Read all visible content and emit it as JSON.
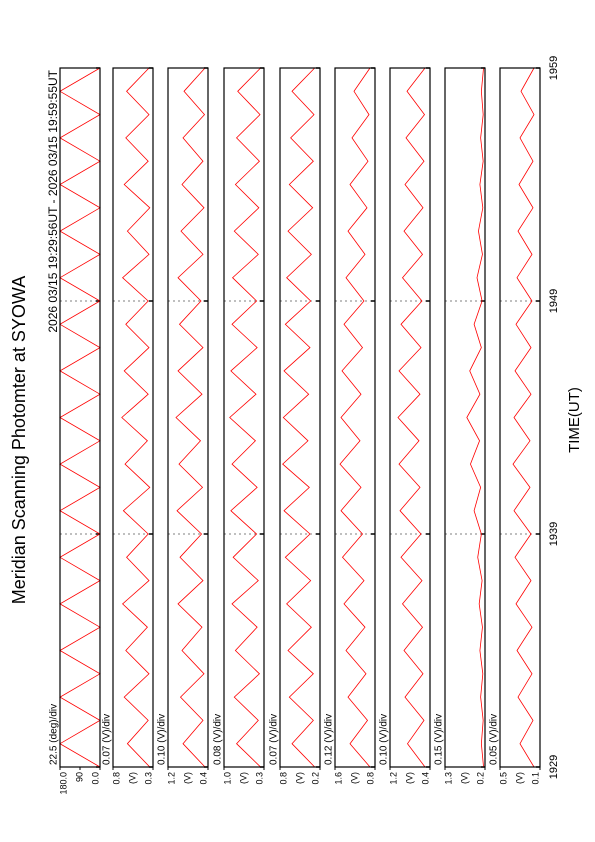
{
  "chart_data": {
    "type": "line",
    "title": "Meridian Scanning Photomter at SYOWA",
    "subtitle": "2026 03/15 19:29:56UT - 2026 03/15 19:59:55UT",
    "xlabel": "TIME(UT)",
    "color": "#ff0000",
    "xlim": [
      0,
      30
    ],
    "xticks": [
      {
        "value": 0,
        "label": "1929"
      },
      {
        "value": 10,
        "label": "1939"
      },
      {
        "value": 20,
        "label": "1949"
      },
      {
        "value": 30,
        "label": "1959"
      }
    ],
    "x": [
      0,
      1,
      2,
      3,
      4,
      5,
      6,
      7,
      8,
      9,
      10,
      11,
      12,
      13,
      14,
      15,
      16,
      17,
      18,
      19,
      20,
      21,
      22,
      23,
      24,
      25,
      26,
      27,
      28,
      29,
      30
    ],
    "panels": [
      {
        "scale_label": "22.5 (deg)/div",
        "ylim": [
          0,
          180
        ],
        "yticks": [
          {
            "value": 0,
            "label": "0.0"
          },
          90,
          {
            "value": 180,
            "label": "180.0"
          }
        ],
        "values": [
          0,
          180,
          0,
          180,
          0,
          180,
          0,
          180,
          0,
          180,
          0,
          180,
          0,
          180,
          0,
          180,
          0,
          180,
          0,
          180,
          0,
          180,
          0,
          180,
          0,
          180,
          0,
          180,
          0,
          180,
          0
        ]
      },
      {
        "scale_label": "0.07 (V)/div",
        "unit": "(V)",
        "ylim": [
          0.3,
          0.8
        ],
        "yticks": [
          0.3,
          0.8
        ],
        "values": [
          0.34,
          0.62,
          0.36,
          0.66,
          0.35,
          0.64,
          0.37,
          0.68,
          0.35,
          0.63,
          0.36,
          0.67,
          0.34,
          0.65,
          0.37,
          0.69,
          0.36,
          0.66,
          0.35,
          0.64,
          0.36,
          0.68,
          0.35,
          0.62,
          0.34,
          0.66,
          0.36,
          0.64,
          0.35,
          0.63,
          0.35
        ]
      },
      {
        "scale_label": "0.10 (V)/div",
        "unit": "(V)",
        "ylim": [
          0.4,
          1.2
        ],
        "yticks": [
          0.4,
          1.2
        ],
        "values": [
          0.46,
          0.9,
          0.5,
          0.95,
          0.48,
          0.92,
          0.52,
          1.0,
          0.5,
          0.96,
          0.53,
          1.02,
          0.51,
          0.98,
          0.55,
          1.04,
          0.52,
          1.0,
          0.5,
          0.97,
          0.54,
          1.0,
          0.5,
          0.94,
          0.48,
          0.92,
          0.5,
          0.9,
          0.47,
          0.88,
          0.46
        ]
      },
      {
        "scale_label": "0.08 (V)/div",
        "unit": "(V)",
        "ylim": [
          0.3,
          1.0
        ],
        "yticks": [
          0.3,
          {
            "value": 1.0,
            "label": "1.0"
          }
        ],
        "values": [
          0.36,
          0.78,
          0.4,
          0.82,
          0.38,
          0.8,
          0.42,
          0.86,
          0.4,
          0.84,
          0.43,
          0.88,
          0.42,
          0.86,
          0.45,
          0.9,
          0.44,
          0.88,
          0.42,
          0.86,
          0.43,
          0.85,
          0.4,
          0.82,
          0.39,
          0.8,
          0.38,
          0.78,
          0.37,
          0.76,
          0.36
        ]
      },
      {
        "scale_label": "0.07 (V)/div",
        "unit": "(V)",
        "ylim": [
          0.2,
          0.8
        ],
        "yticks": [
          0.2,
          0.8
        ],
        "values": [
          0.28,
          0.62,
          0.3,
          0.66,
          0.3,
          0.68,
          0.33,
          0.7,
          0.34,
          0.72,
          0.35,
          0.74,
          0.36,
          0.76,
          0.38,
          0.75,
          0.37,
          0.74,
          0.35,
          0.72,
          0.34,
          0.7,
          0.33,
          0.68,
          0.31,
          0.66,
          0.3,
          0.64,
          0.29,
          0.62,
          0.28
        ]
      },
      {
        "scale_label": "0.12 (V)/div",
        "unit": "(V)",
        "ylim": [
          0.8,
          1.6
        ],
        "yticks": [
          0.8,
          1.6
        ],
        "values": [
          0.9,
          1.3,
          0.95,
          1.34,
          0.98,
          1.38,
          1.0,
          1.42,
          1.02,
          1.45,
          1.05,
          1.48,
          1.08,
          1.5,
          1.1,
          1.48,
          1.08,
          1.46,
          1.05,
          1.42,
          1.02,
          1.38,
          1.0,
          1.34,
          0.96,
          1.3,
          0.94,
          1.26,
          0.92,
          1.22,
          0.9
        ]
      },
      {
        "scale_label": "0.10 (V)/div",
        "unit": "(V)",
        "ylim": [
          0.4,
          1.2
        ],
        "yticks": [
          0.4,
          1.2
        ],
        "values": [
          0.5,
          0.85,
          0.52,
          0.9,
          0.54,
          0.92,
          0.55,
          0.95,
          0.56,
          0.98,
          0.58,
          1.0,
          0.6,
          1.02,
          0.62,
          1.04,
          0.6,
          1.02,
          0.58,
          0.98,
          0.56,
          0.95,
          0.55,
          0.92,
          0.54,
          0.9,
          0.52,
          0.88,
          0.51,
          0.86,
          0.5
        ]
      },
      {
        "scale_label": "0.15 (V)/div",
        "unit": "(V)",
        "ylim": [
          0.2,
          1.3
        ],
        "yticks": [
          0.2,
          1.3
        ],
        "values": [
          0.24,
          0.3,
          0.25,
          0.32,
          0.26,
          0.34,
          0.27,
          0.36,
          0.28,
          0.4,
          0.3,
          0.5,
          0.32,
          0.6,
          0.35,
          0.7,
          0.34,
          0.62,
          0.3,
          0.5,
          0.28,
          0.42,
          0.27,
          0.38,
          0.26,
          0.34,
          0.25,
          0.32,
          0.25,
          0.3,
          0.24
        ]
      },
      {
        "scale_label": "0.05 (V)/div",
        "unit": "(V)",
        "ylim": [
          0.1,
          0.5
        ],
        "yticks": [
          0.1,
          0.5
        ],
        "values": [
          0.16,
          0.3,
          0.17,
          0.32,
          0.18,
          0.33,
          0.18,
          0.34,
          0.19,
          0.35,
          0.19,
          0.36,
          0.2,
          0.37,
          0.2,
          0.36,
          0.19,
          0.35,
          0.19,
          0.34,
          0.18,
          0.33,
          0.18,
          0.32,
          0.17,
          0.31,
          0.17,
          0.3,
          0.16,
          0.29,
          0.16
        ]
      }
    ]
  }
}
